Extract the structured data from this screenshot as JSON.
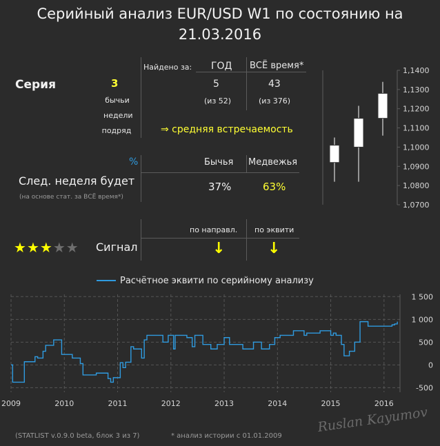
{
  "title_line1": "Серийный анализ EUR/USD W1 по состоянию на",
  "title_line2": "21.03.2016",
  "table": {
    "found_label": "Найдено за:",
    "col_year": "ГОД",
    "col_all": "ВСЁ время*",
    "series_label": "Серия",
    "series_value": "3",
    "series_desc": [
      "бычьи",
      "недели",
      "подряд"
    ],
    "year_count": "5",
    "year_total": "(из 52)",
    "all_count": "43",
    "all_total": "(из 376)",
    "frequency": "⇒ средняя встречаемость",
    "pct_label": "%",
    "col_bull": "Бычья",
    "col_bear": "Медвежья",
    "next_week_label": "След. неделя будет",
    "next_week_note": "(на основе стат. за ВСЁ время*)",
    "bull_pct": "37%",
    "bear_pct": "63%",
    "col_direction": "по направл.",
    "col_equity": "по эквити",
    "signal_label": "Сигнал",
    "stars_filled": 3,
    "stars_total": 5,
    "arrow_direction": "↓",
    "arrow_equity": "↓"
  },
  "candles": {
    "y_ticks": [
      "1,1400",
      "1,1300",
      "1,1200",
      "1,1100",
      "1,1000",
      "1,0900",
      "1,0800",
      "1,0700"
    ],
    "ylim": [
      1.07,
      1.14
    ],
    "bars": [
      {
        "open": 1.092,
        "close": 1.101,
        "high": 1.105,
        "low": 1.082
      },
      {
        "open": 1.1,
        "close": 1.115,
        "high": 1.1215,
        "low": 1.082
      },
      {
        "open": 1.115,
        "close": 1.128,
        "high": 1.134,
        "low": 1.106
      }
    ]
  },
  "chart_data": {
    "type": "line",
    "legend": "Расчётное эквити по серийному анализу",
    "x_ticks": [
      "2009",
      "2010",
      "2011",
      "2012",
      "2013",
      "2014",
      "2015",
      "2016"
    ],
    "y_ticks": [
      "1 500",
      "1 000",
      "500",
      "0",
      "-500"
    ],
    "xlim": [
      2009.0,
      2016.3
    ],
    "ylim": [
      -600,
      1550
    ],
    "series": [
      {
        "color": "#2f9be0",
        "x": [
          2009.0,
          2009.03,
          2009.06,
          2009.12,
          2009.25,
          2009.3,
          2009.45,
          2009.5,
          2009.6,
          2009.65,
          2009.75,
          2009.8,
          2009.88,
          2009.95,
          2010.1,
          2010.15,
          2010.25,
          2010.3,
          2010.35,
          2010.55,
          2010.6,
          2010.75,
          2010.82,
          2010.87,
          2010.92,
          2011.0,
          2011.05,
          2011.1,
          2011.15,
          2011.25,
          2011.3,
          2011.35,
          2011.45,
          2011.5,
          2011.55,
          2011.6,
          2011.8,
          2011.85,
          2011.95,
          2012.05,
          2012.08,
          2012.2,
          2012.3,
          2012.4,
          2012.45,
          2012.55,
          2012.6,
          2012.7,
          2012.75,
          2012.82,
          2012.87,
          2012.93,
          2013.0,
          2013.05,
          2013.1,
          2013.3,
          2013.35,
          2013.5,
          2013.55,
          2013.65,
          2013.7,
          2013.8,
          2013.85,
          2013.95,
          2014.05,
          2014.25,
          2014.3,
          2014.5,
          2014.55,
          2014.7,
          2014.8,
          2014.9,
          2015.0,
          2015.05,
          2015.1,
          2015.15,
          2015.2,
          2015.25,
          2015.35,
          2015.45,
          2015.55,
          2015.7,
          2015.9,
          2016.05,
          2016.15,
          2016.2,
          2016.25
        ],
        "y": [
          0,
          -380,
          -380,
          -380,
          70,
          70,
          180,
          150,
          300,
          430,
          430,
          550,
          550,
          230,
          230,
          150,
          150,
          30,
          -220,
          -220,
          -180,
          -180,
          -300,
          -380,
          -280,
          -280,
          50,
          -60,
          60,
          400,
          350,
          350,
          150,
          550,
          650,
          650,
          650,
          500,
          650,
          350,
          650,
          650,
          600,
          400,
          650,
          650,
          450,
          450,
          350,
          350,
          450,
          450,
          600,
          600,
          450,
          450,
          350,
          350,
          500,
          500,
          350,
          350,
          450,
          600,
          650,
          650,
          750,
          650,
          700,
          700,
          750,
          750,
          650,
          700,
          650,
          650,
          450,
          200,
          300,
          500,
          950,
          850,
          850,
          850,
          880,
          900,
          950
        ]
      }
    ]
  },
  "footer_left": "(STATLIST v.0.9.0 beta, блок 3 из 7)",
  "footer_right": "* анализ истории с  01.01.2009",
  "watermark": "Ruslan Kayumov",
  "colors": {
    "accent": "#ffff33",
    "line": "#2f9be0",
    "background": "#2b2b2b"
  }
}
